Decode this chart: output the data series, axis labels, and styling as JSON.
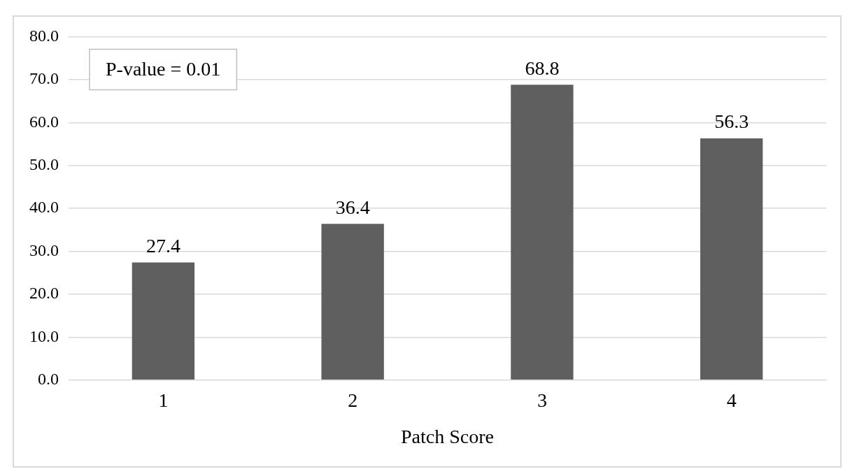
{
  "chart_data": {
    "type": "bar",
    "xlabel": "Patch Score",
    "categories": [
      "1",
      "2",
      "3",
      "4"
    ],
    "values": [
      27.4,
      36.4,
      68.8,
      56.3
    ],
    "color": "#5f5f5f",
    "ylim": [
      0,
      80
    ],
    "yticks": [
      {
        "value": 0,
        "label": "0.0"
      },
      {
        "value": 10,
        "label": "10.0"
      },
      {
        "value": 20,
        "label": "20.0"
      },
      {
        "value": 30,
        "label": "30.0"
      },
      {
        "value": 40,
        "label": "40.0"
      },
      {
        "value": 50,
        "label": "50.0"
      },
      {
        "value": 60,
        "label": "60.0"
      },
      {
        "value": 70,
        "label": "70.0"
      },
      {
        "value": 80,
        "label": "80.0"
      }
    ],
    "grid": "y",
    "data_labels": true,
    "legend": false,
    "annotations": [
      "P-value = 0.01"
    ]
  }
}
